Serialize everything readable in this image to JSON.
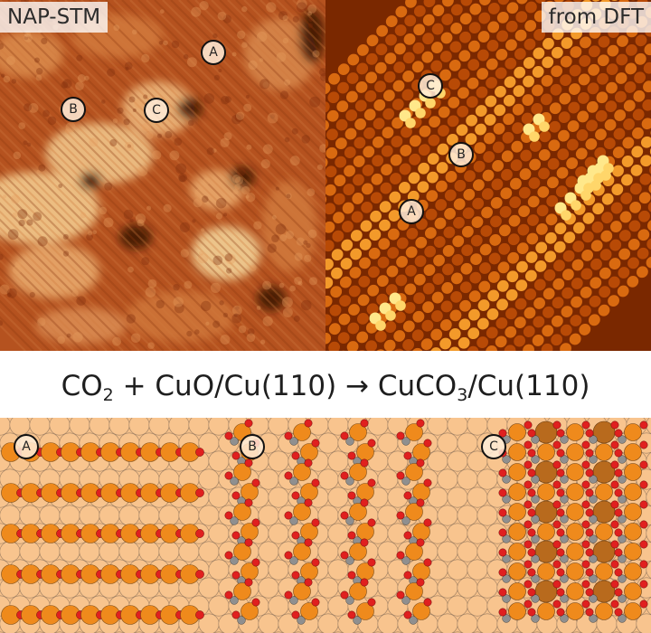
{
  "stm_panel": {
    "label": "NAP-STM"
  },
  "dft_panel": {
    "label": "from DFT"
  },
  "equation": {
    "part1": "CO",
    "sub1": "2",
    "part2": " + CuO/Cu(110) → CuCO",
    "sub2": "3",
    "part3": "/Cu(110)"
  },
  "markers": {
    "stm_a": "A",
    "stm_b": "B",
    "stm_c": "C",
    "dft_a": "A",
    "dft_b": "B",
    "dft_c": "C",
    "model_a": "A",
    "model_b": "B",
    "model_c": "C"
  },
  "colors": {
    "stm_base": "#b5521f",
    "dft_base": "#7a2800",
    "dft_bright": "#ffe88a",
    "model_bg": "#f5c08a",
    "cu_surface": "#f8c48e",
    "cu_row": "#ef8a1c",
    "oxygen": "#e0201f",
    "carbon": "#8f8f8f",
    "cu_carbonate": "#b86a1d"
  }
}
